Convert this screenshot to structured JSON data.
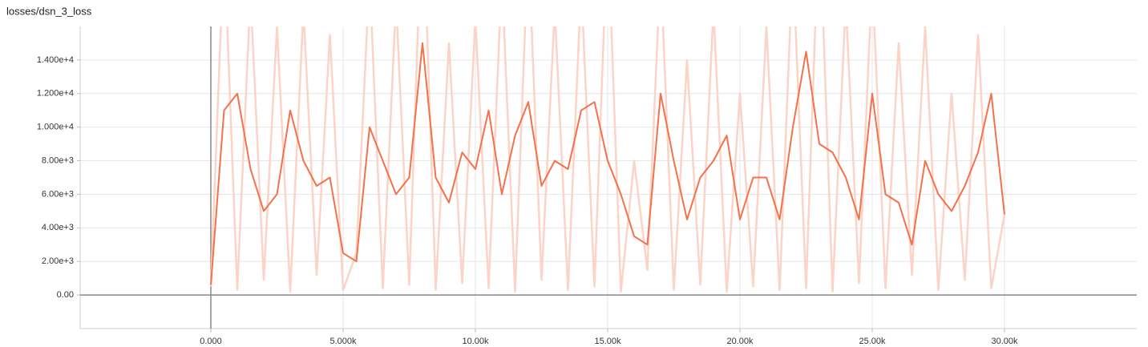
{
  "chart_data": {
    "type": "line",
    "title": "losses/dsn_3_loss",
    "x": [
      0,
      500,
      1000,
      1500,
      2000,
      2500,
      3000,
      3500,
      4000,
      4500,
      5000,
      5500,
      6000,
      6500,
      7000,
      7500,
      8000,
      8500,
      9000,
      9500,
      10000,
      10500,
      11000,
      11500,
      12000,
      12500,
      13000,
      13500,
      14000,
      14500,
      15000,
      15500,
      16000,
      16500,
      17000,
      17500,
      18000,
      18500,
      19000,
      19500,
      20000,
      20500,
      21000,
      21500,
      22000,
      22500,
      23000,
      23500,
      24000,
      24500,
      25000,
      25500,
      26000,
      26500,
      27000,
      27500,
      28000,
      28500,
      29000,
      29500,
      30000
    ],
    "series": [
      {
        "color": "#fbd3c7",
        "values": [
          500,
          21000,
          300,
          18000,
          900,
          16000,
          200,
          17000,
          1200,
          15500,
          300,
          2500,
          19000,
          400,
          17500,
          600,
          24000,
          300,
          15000,
          700,
          16500,
          400,
          19000,
          200,
          21000,
          900,
          17000,
          300,
          18500,
          500,
          22000,
          200,
          8000,
          1500,
          19500,
          300,
          14000,
          600,
          17000,
          200,
          12000,
          500,
          16000,
          300,
          20000,
          400,
          23000,
          200,
          17500,
          700,
          19000,
          400,
          15000,
          1200,
          16000,
          300,
          12000,
          900,
          15500,
          400,
          4800
        ]
      },
      {
        "color": "#f4714a",
        "values": [
          600,
          11000,
          12000,
          7500,
          5000,
          6000,
          11000,
          8000,
          6500,
          7000,
          2500,
          2000,
          10000,
          8000,
          6000,
          7000,
          15000,
          7000,
          5500,
          8500,
          7500,
          11000,
          6000,
          9500,
          11500,
          6500,
          8000,
          7500,
          11000,
          11500,
          8000,
          6000,
          3500,
          3000,
          12000,
          8000,
          4500,
          7000,
          8000,
          9500,
          4500,
          7000,
          7000,
          4500,
          10000,
          14500,
          9000,
          8500,
          7000,
          4500,
          12000,
          6000,
          5500,
          3000,
          8000,
          6000,
          5000,
          6500,
          8500,
          12000,
          4800
        ]
      }
    ],
    "xlim": [
      -4940,
      35000
    ],
    "ylim": [
      -2000,
      16000
    ],
    "xticks": [
      {
        "value": 0,
        "label": "0.000"
      },
      {
        "value": 5000,
        "label": "5.000k"
      },
      {
        "value": 10000,
        "label": "10.00k"
      },
      {
        "value": 15000,
        "label": "15.00k"
      },
      {
        "value": 20000,
        "label": "20.00k"
      },
      {
        "value": 25000,
        "label": "25.00k"
      },
      {
        "value": 30000,
        "label": "30.00k"
      }
    ],
    "yticks": [
      {
        "value": 0,
        "label": "0.00"
      },
      {
        "value": 2000,
        "label": "2.00e+3"
      },
      {
        "value": 4000,
        "label": "4.00e+3"
      },
      {
        "value": 6000,
        "label": "6.00e+3"
      },
      {
        "value": 8000,
        "label": "8.00e+3"
      },
      {
        "value": 10000,
        "label": "1.000e+4"
      },
      {
        "value": 12000,
        "label": "1.200e+4"
      },
      {
        "value": 14000,
        "label": "1.400e+4"
      }
    ],
    "grid": true
  }
}
